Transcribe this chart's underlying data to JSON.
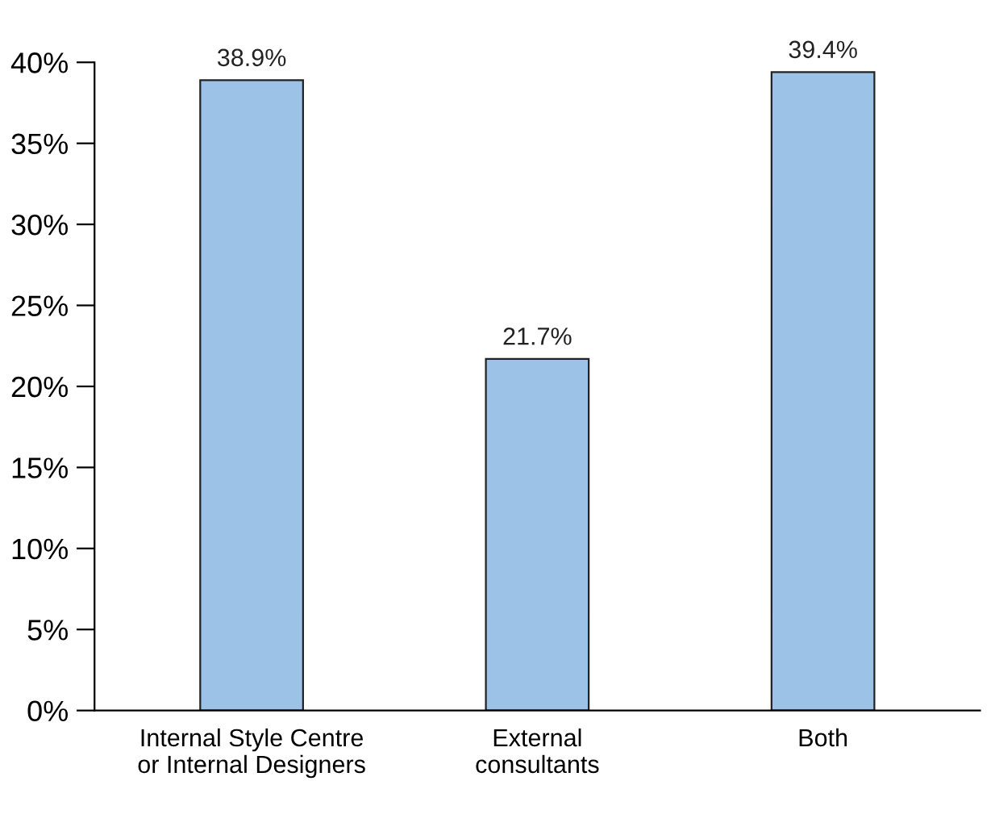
{
  "chart_data": {
    "type": "bar",
    "categories": [
      "Internal Style Centre\nor Internal Designers",
      "External\nconsultants",
      "Both"
    ],
    "values": [
      38.9,
      21.7,
      39.4
    ],
    "value_labels": [
      "38.9%",
      "21.7%",
      "39.4%"
    ],
    "color": "#9cc2e8",
    "ylim": [
      0,
      40
    ],
    "yticks": [
      {
        "value": 0,
        "label": "0%"
      },
      {
        "value": 5,
        "label": "5%"
      },
      {
        "value": 10,
        "label": "10%"
      },
      {
        "value": 15,
        "label": "15%"
      },
      {
        "value": 20,
        "label": "20%"
      },
      {
        "value": 25,
        "label": "25%"
      },
      {
        "value": 30,
        "label": "30%"
      },
      {
        "value": 35,
        "label": "35%"
      },
      {
        "value": 40,
        "label": "40%"
      }
    ],
    "grid": false
  }
}
